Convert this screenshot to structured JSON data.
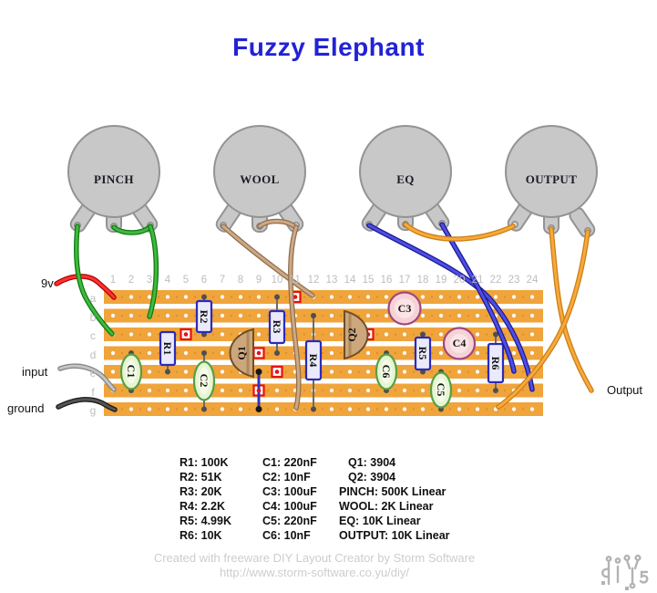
{
  "title": "Fuzzy Elephant",
  "pots": {
    "pinch": "PINCH",
    "wool": "WOOL",
    "eq": "EQ",
    "output": "OUTPUT"
  },
  "side_labels": {
    "v9": "9v",
    "input": "input",
    "ground": "ground",
    "output": "Output"
  },
  "board": {
    "columns": [
      "1",
      "2",
      "3",
      "4",
      "5",
      "6",
      "7",
      "8",
      "9",
      "10",
      "11",
      "12",
      "13",
      "14",
      "15",
      "16",
      "17",
      "18",
      "19",
      "20",
      "21",
      "22",
      "23",
      "24"
    ],
    "rows": [
      "a",
      "b",
      "c",
      "d",
      "e",
      "f",
      "g"
    ],
    "components": {
      "r1": "R1",
      "r2": "R2",
      "r3": "R3",
      "r4": "R4",
      "r5": "R5",
      "r6": "R6",
      "c1": "C1",
      "c2": "C2",
      "c3": "C3",
      "c4": "C4",
      "c5": "C5",
      "c6": "C6",
      "q1": "Q1",
      "q2": "Q2"
    }
  },
  "legend": {
    "resistors": [
      "R1: 100K",
      "R2: 51K",
      "R3: 20K",
      "R4: 2.2K",
      "R5: 4.99K",
      "R6: 10K"
    ],
    "capacitors": [
      "C1: 220nF",
      "C2: 10nF",
      "C3: 100uF",
      "C4: 100uF",
      "C5: 220nF",
      "C6: 10nF"
    ],
    "others": [
      "Q1: 3904",
      "Q2: 3904",
      "PINCH: 500K Linear",
      "WOOL: 2K Linear",
      "EQ: 10K Linear",
      "OUTPUT: 10K Linear"
    ]
  },
  "footer": {
    "line1": "Created with freeware DIY Layout Creator by Storm Software",
    "line2": "http://www.storm-software.co.yu/diy/"
  },
  "colors": {
    "title": "#2222d6",
    "strip": "#f0a43c",
    "track_cut": "#e81010",
    "wire_9v": "#ff3333",
    "wire_input": "#c0c0c0",
    "wire_ground": "#4a4a4a",
    "wire_pinch": "#3dbb3d",
    "wire_wool": "#cfa884",
    "wire_eq": "#4e4ee6",
    "wire_output": "#f7a93b",
    "resistor_outline": "#2b2bb8",
    "capacitor_outline": "#55a044",
    "electrolytic_outline": "#a0487a",
    "transistor_outline": "#6e4e28",
    "pot_body": "#c8c8c8"
  }
}
